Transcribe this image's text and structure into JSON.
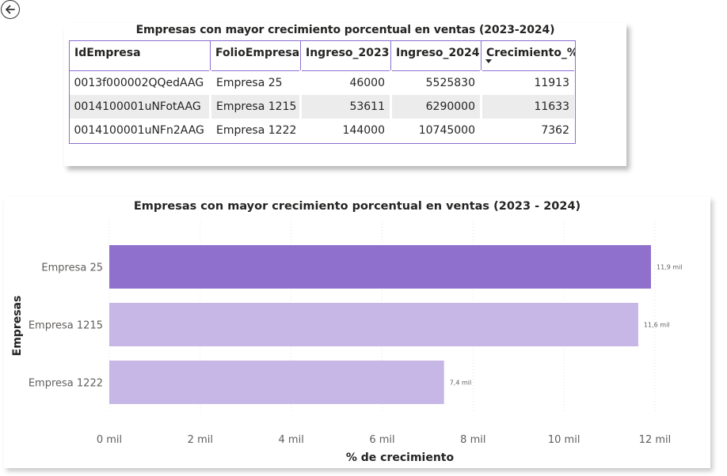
{
  "table": {
    "title": "Empresas con mayor crecimiento porcentual en ventas (2023-2024)",
    "columns": [
      "IdEmpresa",
      "FolioEmpresa",
      "Ingreso_2023",
      "Ingreso_2024",
      "Crecimiento_%"
    ],
    "sort_column": "Crecimiento_%",
    "rows": [
      [
        "0013f000002QQedAAG",
        "Empresa 25",
        "46000",
        "5525830",
        "11913"
      ],
      [
        "0014100001uNFotAAG",
        "Empresa 1215",
        "53611",
        "6290000",
        "11633"
      ],
      [
        "0014100001uNFn2AAG",
        "Empresa 1222",
        "144000",
        "10745000",
        "7362"
      ]
    ]
  },
  "chart_data": {
    "type": "bar",
    "orientation": "horizontal",
    "title": "Empresas con mayor crecimiento porcentual en ventas (2023 - 2024)",
    "xlabel": "% de crecimiento",
    "ylabel": "Empresas",
    "categories": [
      "Empresa 25",
      "Empresa 1215",
      "Empresa 1222"
    ],
    "values": [
      11913,
      11633,
      7362
    ],
    "data_labels": [
      "11,9 mil",
      "11,6 mil",
      "7,4 mil"
    ],
    "xlim": [
      0,
      12000
    ],
    "xticks": [
      0,
      2000,
      4000,
      6000,
      8000,
      10000,
      12000
    ],
    "xtick_labels": [
      "0 mil",
      "2 mil",
      "4 mil",
      "6 mil",
      "8 mil",
      "10 mil",
      "12 mil"
    ],
    "grid": true,
    "colors": {
      "highlight": "#8f70cc",
      "default": "#c7b7e6"
    }
  }
}
